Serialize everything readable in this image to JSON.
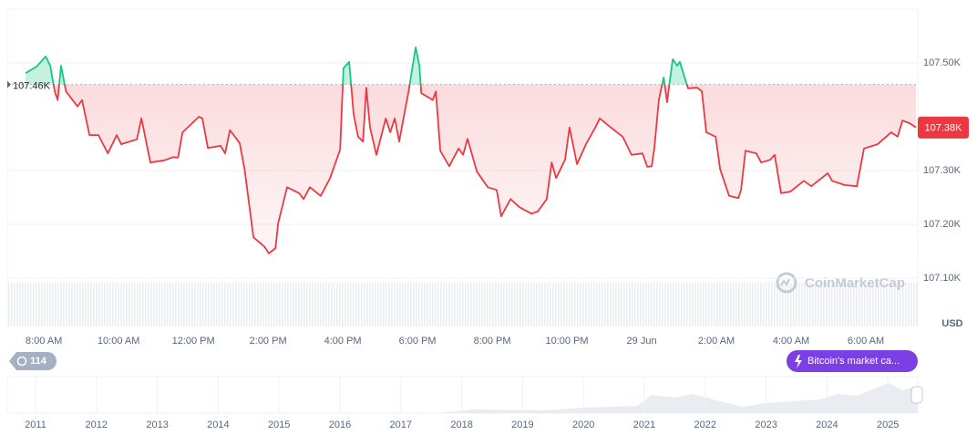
{
  "chart_data": {
    "type": "line",
    "x": [
      7.51,
      7.8,
      8.05,
      8.17,
      8.29,
      8.37,
      8.46,
      8.59,
      8.9,
      9.02,
      9.22,
      9.46,
      9.71,
      9.95,
      10.07,
      10.49,
      10.61,
      10.85,
      11.22,
      11.46,
      11.59,
      11.71,
      12.15,
      12.24,
      12.39,
      12.73,
      12.85,
      12.98,
      13.24,
      13.37,
      13.61,
      13.9,
      14.02,
      14.2,
      14.27,
      14.51,
      14.83,
      14.95,
      15.12,
      15.41,
      15.66,
      15.93,
      16.02,
      16.17,
      16.29,
      16.41,
      16.54,
      16.63,
      16.73,
      16.9,
      17.15,
      17.27,
      17.39,
      17.51,
      17.76,
      17.95,
      18.05,
      18.1,
      18.41,
      18.49,
      18.61,
      18.85,
      19.1,
      19.22,
      19.34,
      19.59,
      19.88,
      20.12,
      20.24,
      20.49,
      20.73,
      21.05,
      21.22,
      21.46,
      21.59,
      21.71,
      21.95,
      22.07,
      22.27,
      22.51,
      22.76,
      22.88,
      23.12,
      23.49,
      23.73,
      24.02,
      24.15,
      24.27,
      24.34,
      24.46,
      24.59,
      24.68,
      24.83,
      24.95,
      25.02,
      25.24,
      25.49,
      25.61,
      25.73,
      25.98,
      26.1,
      26.34,
      26.59,
      26.66,
      26.78,
      27.07,
      27.2,
      27.44,
      27.56,
      27.73,
      27.98,
      28.34,
      28.54,
      28.98,
      29.1,
      29.44,
      29.76,
      29.95,
      30.32,
      30.68,
      30.85,
      30.98,
      31.17,
      31.34
    ],
    "series": [
      {
        "color": "#ea3943",
        "up_color": "#16c784",
        "values": [
          107481,
          107493,
          107512,
          107495,
          107447,
          107431,
          107495,
          107447,
          107419,
          107431,
          107366,
          107366,
          107332,
          107366,
          107349,
          107358,
          107397,
          107315,
          107319,
          107325,
          107324,
          107371,
          107400,
          107397,
          107342,
          107346,
          107332,
          107375,
          107351,
          107303,
          107176,
          107159,
          107146,
          107156,
          107202,
          107269,
          107258,
          107247,
          107269,
          107253,
          107286,
          107339,
          107490,
          107502,
          107405,
          107363,
          107354,
          107454,
          107380,
          107329,
          107397,
          107371,
          107397,
          107354,
          107447,
          107529,
          107495,
          107444,
          107431,
          107447,
          107337,
          107308,
          107341,
          107329,
          107359,
          107298,
          107269,
          107264,
          107215,
          107247,
          107232,
          107220,
          107224,
          107247,
          107315,
          107286,
          107320,
          107380,
          107312,
          107349,
          107380,
          107397,
          107383,
          107363,
          107329,
          107332,
          107307,
          107308,
          107342,
          107431,
          107473,
          107427,
          107507,
          107495,
          107502,
          107453,
          107454,
          107447,
          107371,
          107363,
          107303,
          107253,
          107249,
          107264,
          107337,
          107332,
          107315,
          107320,
          107329,
          107258,
          107261,
          107281,
          107271,
          107295,
          107281,
          107273,
          107271,
          107341,
          107349,
          107371,
          107363,
          107393,
          107388,
          107380
        ]
      }
    ],
    "baseline": {
      "value": 107460,
      "label": "107.46K"
    },
    "current_price": {
      "value": 107380,
      "label": "107.38K"
    },
    "xlim": [
      7.02,
      31.39
    ],
    "xticks": [
      {
        "value": 8,
        "label": "8:00 AM"
      },
      {
        "value": 10,
        "label": "10:00 AM"
      },
      {
        "value": 12,
        "label": "12:00 PM"
      },
      {
        "value": 14,
        "label": "2:00 PM"
      },
      {
        "value": 16,
        "label": "4:00 PM"
      },
      {
        "value": 18,
        "label": "6:00 PM"
      },
      {
        "value": 20,
        "label": "8:00 PM"
      },
      {
        "value": 22,
        "label": "10:00 PM"
      },
      {
        "value": 24,
        "label": "29 Jun"
      },
      {
        "value": 26,
        "label": "2:00 AM"
      },
      {
        "value": 28,
        "label": "4:00 AM"
      },
      {
        "value": 30,
        "label": "6:00 AM"
      }
    ],
    "ylim": [
      107012,
      107600
    ],
    "yticks": [
      {
        "value": 107500,
        "label": "107.50K"
      },
      {
        "value": 107300,
        "label": "107.30K"
      },
      {
        "value": 107200,
        "label": "107.20K"
      },
      {
        "value": 107100,
        "label": "107.10K"
      }
    ],
    "grid": true,
    "currency": "USD",
    "watermark": "CoinMarketCap",
    "history_badge": "114",
    "event_badge": "Bitcoin's market ca...",
    "navigator_years": [
      "2011",
      "2012",
      "2013",
      "2014",
      "2015",
      "2016",
      "2017",
      "2018",
      "2019",
      "2020",
      "2021",
      "2022",
      "2023",
      "2024",
      "2025"
    ]
  }
}
